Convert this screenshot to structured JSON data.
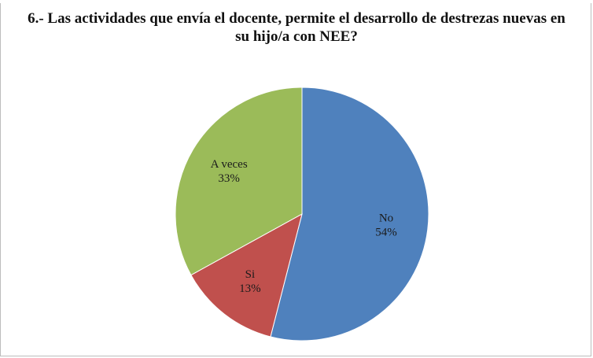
{
  "chart_data": {
    "type": "pie",
    "title": "6.- Las actividades que envía el docente, permite el desarrollo de destrezas nuevas en su hijo/a con NEE?",
    "slices": [
      {
        "label": "No",
        "percent_label": "54%",
        "value": 54,
        "color": "#4f81bd"
      },
      {
        "label": "Si",
        "percent_label": "13%",
        "value": 13,
        "color": "#c0504d"
      },
      {
        "label": "A veces",
        "percent_label": "33%",
        "value": 33,
        "color": "#9bbb59"
      }
    ],
    "start_angle_deg": 0,
    "direction": "clockwise",
    "data_labels": "inside",
    "legend": "none"
  }
}
